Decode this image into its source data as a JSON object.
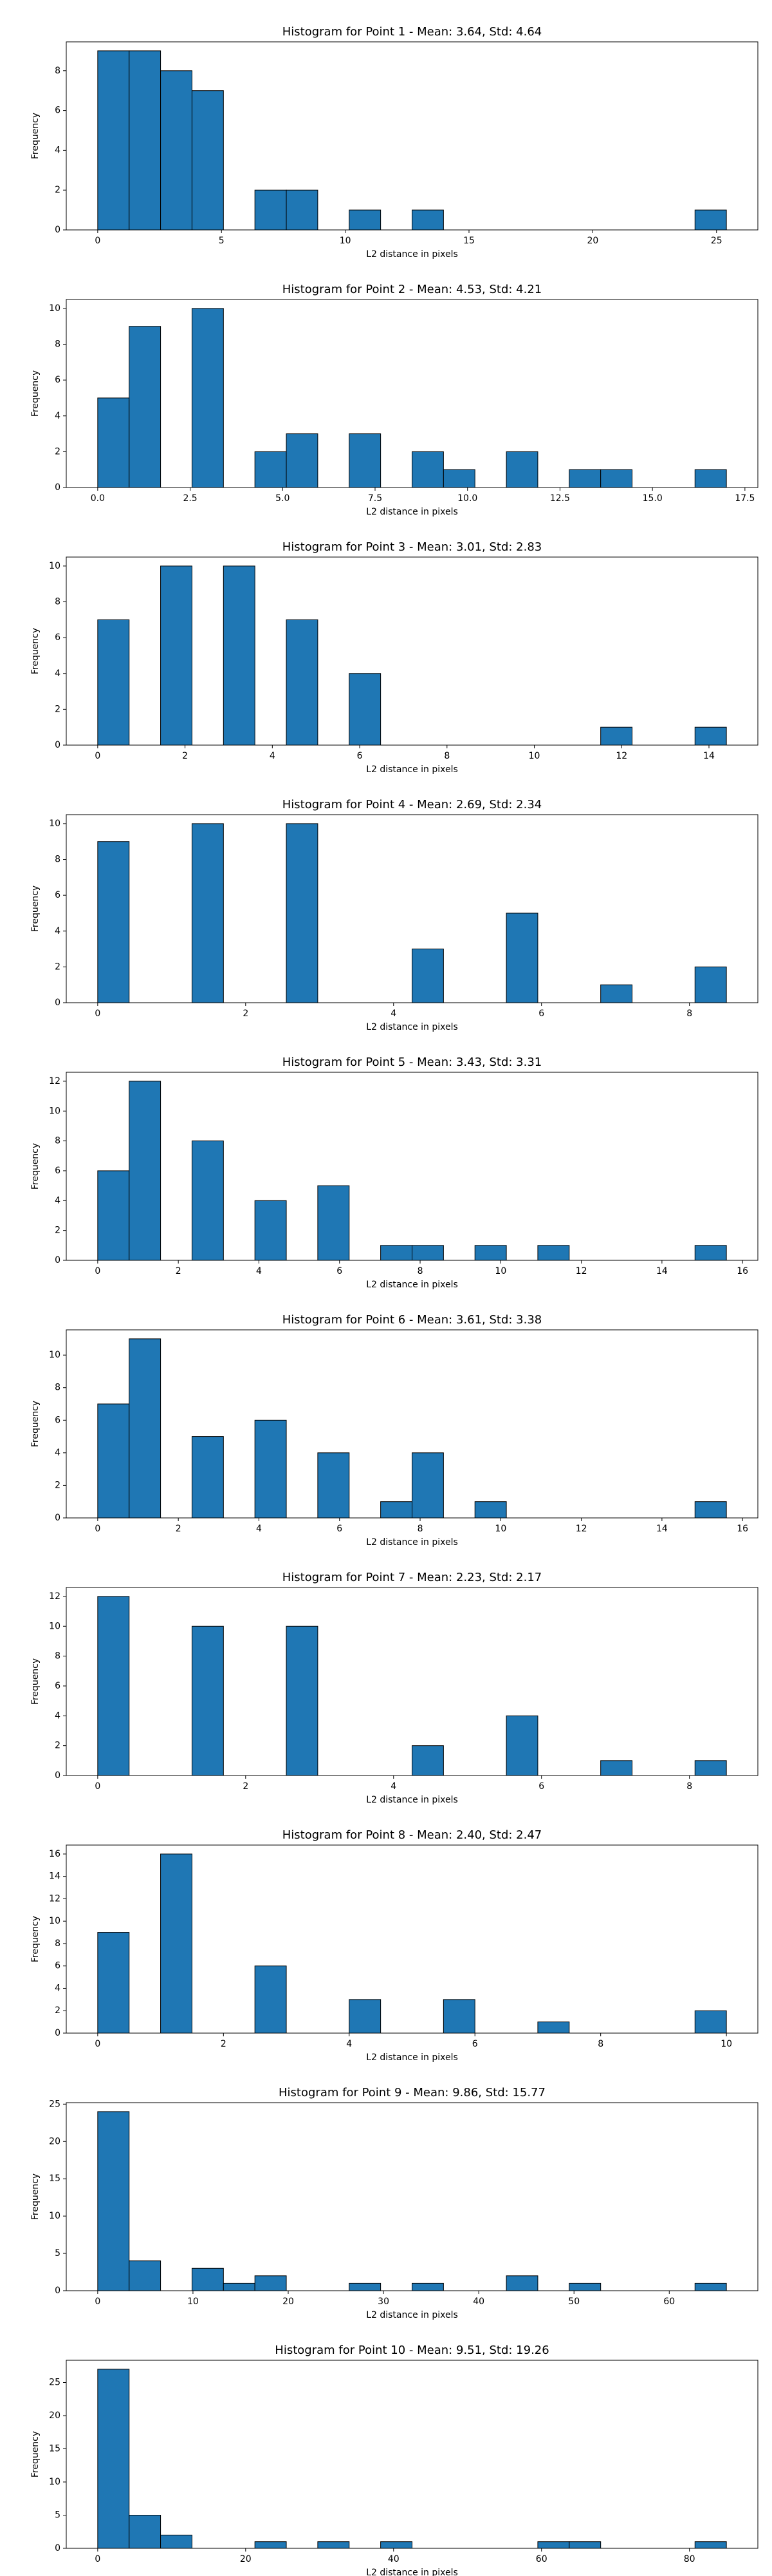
{
  "chart_data": [
    {
      "type": "histogram",
      "title": "Histogram for Point 1 - Mean: 3.64, Std: 4.64",
      "x_label": "L2 distance in pixels",
      "y_label": "Frequency",
      "color": "#1f77b4",
      "bins": [
        0,
        1.27,
        2.54,
        3.81,
        5.08,
        6.35,
        7.62,
        8.89,
        10.16,
        11.43,
        12.7,
        13.97,
        15.24,
        16.51,
        17.78,
        19.05,
        20.32,
        21.59,
        22.86,
        24.13,
        25.4
      ],
      "values": [
        9,
        9,
        8,
        7,
        0,
        2,
        2,
        0,
        1,
        0,
        1,
        0,
        0,
        0,
        0,
        0,
        0,
        0,
        0,
        1
      ],
      "xlim": [
        -1.27,
        26.67
      ],
      "xticks": [
        0,
        5,
        10,
        15,
        20,
        25
      ],
      "ylim": [
        0,
        9.45
      ],
      "yticks": [
        0,
        2,
        4,
        6,
        8
      ]
    },
    {
      "type": "histogram",
      "title": "Histogram for Point 2 - Mean: 4.53, Std: 4.21",
      "x_label": "L2 distance in pixels",
      "y_label": "Frequency",
      "color": "#1f77b4",
      "bins": [
        0,
        0.85,
        1.7,
        2.55,
        3.4,
        4.25,
        5.1,
        5.95,
        6.8,
        7.65,
        8.5,
        9.35,
        10.2,
        11.05,
        11.9,
        12.75,
        13.6,
        14.45,
        15.3,
        16.15,
        17
      ],
      "values": [
        5,
        9,
        0,
        10,
        0,
        2,
        3,
        0,
        3,
        0,
        2,
        1,
        0,
        2,
        0,
        1,
        1,
        0,
        0,
        1
      ],
      "xlim": [
        -0.85,
        17.85
      ],
      "xticks": [
        {
          "value": 0,
          "label": "0.0"
        },
        2.5,
        {
          "value": 5,
          "label": "5.0"
        },
        7.5,
        {
          "value": 10,
          "label": "10.0"
        },
        12.5,
        {
          "value": 15,
          "label": "15.0"
        },
        17.5
      ],
      "ylim": [
        0,
        10.5
      ],
      "yticks": [
        0,
        2,
        4,
        6,
        8,
        10
      ]
    },
    {
      "type": "histogram",
      "title": "Histogram for Point 3 - Mean: 3.01, Std: 2.83",
      "x_label": "L2 distance in pixels",
      "y_label": "Frequency",
      "color": "#1f77b4",
      "bins": [
        0,
        0.72,
        1.44,
        2.16,
        2.88,
        3.6,
        4.32,
        5.04,
        5.76,
        6.48,
        7.2,
        7.92,
        8.64,
        9.36,
        10.08,
        10.8,
        11.52,
        12.24,
        12.96,
        13.68,
        14.4
      ],
      "values": [
        7,
        0,
        10,
        0,
        10,
        0,
        7,
        0,
        4,
        0,
        0,
        0,
        0,
        0,
        0,
        0,
        1,
        0,
        0,
        1
      ],
      "xlim": [
        -0.72,
        15.12
      ],
      "xticks": [
        0,
        2,
        4,
        6,
        8,
        10,
        12,
        14
      ],
      "ylim": [
        0,
        10.5
      ],
      "yticks": [
        0,
        2,
        4,
        6,
        8,
        10
      ]
    },
    {
      "type": "histogram",
      "title": "Histogram for Point 4 - Mean: 2.69, Std: 2.34",
      "x_label": "L2 distance in pixels",
      "y_label": "Frequency",
      "color": "#1f77b4",
      "bins": [
        0,
        0.425,
        0.85,
        1.275,
        1.7,
        2.125,
        2.55,
        2.975,
        3.4,
        3.825,
        4.25,
        4.675,
        5.1,
        5.525,
        5.95,
        6.375,
        6.8,
        7.225,
        7.65,
        8.075,
        8.5
      ],
      "values": [
        9,
        0,
        0,
        10,
        0,
        0,
        10,
        0,
        0,
        0,
        3,
        0,
        0,
        5,
        0,
        0,
        1,
        0,
        0,
        2
      ],
      "xlim": [
        -0.425,
        8.925
      ],
      "xticks": [
        0,
        2,
        4,
        6,
        8
      ],
      "ylim": [
        0,
        10.5
      ],
      "yticks": [
        0,
        2,
        4,
        6,
        8,
        10
      ]
    },
    {
      "type": "histogram",
      "title": "Histogram for Point 5 - Mean: 3.43, Std: 3.31",
      "x_label": "L2 distance in pixels",
      "y_label": "Frequency",
      "color": "#1f77b4",
      "bins": [
        0,
        0.78,
        1.56,
        2.34,
        3.12,
        3.9,
        4.68,
        5.46,
        6.24,
        7.02,
        7.8,
        8.58,
        9.36,
        10.14,
        10.92,
        11.7,
        12.48,
        13.26,
        14.04,
        14.82,
        15.6
      ],
      "values": [
        6,
        12,
        0,
        8,
        0,
        4,
        0,
        5,
        0,
        1,
        1,
        0,
        1,
        0,
        1,
        0,
        0,
        0,
        0,
        1
      ],
      "xlim": [
        -0.78,
        16.38
      ],
      "xticks": [
        0,
        2,
        4,
        6,
        8,
        10,
        12,
        14,
        16
      ],
      "ylim": [
        0,
        12.6
      ],
      "yticks": [
        0,
        2,
        4,
        6,
        8,
        10,
        12
      ]
    },
    {
      "type": "histogram",
      "title": "Histogram for Point 6 - Mean: 3.61, Std: 3.38",
      "x_label": "L2 distance in pixels",
      "y_label": "Frequency",
      "color": "#1f77b4",
      "bins": [
        0,
        0.78,
        1.56,
        2.34,
        3.12,
        3.9,
        4.68,
        5.46,
        6.24,
        7.02,
        7.8,
        8.58,
        9.36,
        10.14,
        10.92,
        11.7,
        12.48,
        13.26,
        14.04,
        14.82,
        15.6
      ],
      "values": [
        7,
        11,
        0,
        5,
        0,
        6,
        0,
        4,
        0,
        1,
        4,
        0,
        1,
        0,
        0,
        0,
        0,
        0,
        0,
        1
      ],
      "xlim": [
        -0.78,
        16.38
      ],
      "xticks": [
        0,
        2,
        4,
        6,
        8,
        10,
        12,
        14,
        16
      ],
      "ylim": [
        0,
        11.55
      ],
      "yticks": [
        0,
        2,
        4,
        6,
        8,
        10
      ]
    },
    {
      "type": "histogram",
      "title": "Histogram for Point 7 - Mean: 2.23, Std: 2.17",
      "x_label": "L2 distance in pixels",
      "y_label": "Frequency",
      "color": "#1f77b4",
      "bins": [
        0,
        0.425,
        0.85,
        1.275,
        1.7,
        2.125,
        2.55,
        2.975,
        3.4,
        3.825,
        4.25,
        4.675,
        5.1,
        5.525,
        5.95,
        6.375,
        6.8,
        7.225,
        7.65,
        8.075,
        8.5
      ],
      "values": [
        12,
        0,
        0,
        10,
        0,
        0,
        10,
        0,
        0,
        0,
        2,
        0,
        0,
        4,
        0,
        0,
        1,
        0,
        0,
        1
      ],
      "xlim": [
        -0.425,
        8.925
      ],
      "xticks": [
        0,
        2,
        4,
        6,
        8
      ],
      "ylim": [
        0,
        12.6
      ],
      "yticks": [
        0,
        2,
        4,
        6,
        8,
        10,
        12
      ]
    },
    {
      "type": "histogram",
      "title": "Histogram for Point 8 - Mean: 2.40, Std: 2.47",
      "x_label": "L2 distance in pixels",
      "y_label": "Frequency",
      "color": "#1f77b4",
      "bins": [
        0,
        0.5,
        1,
        1.5,
        2,
        2.5,
        3,
        3.5,
        4,
        4.5,
        5,
        5.5,
        6,
        6.5,
        7,
        7.5,
        8,
        8.5,
        9,
        9.5,
        10
      ],
      "values": [
        9,
        0,
        16,
        0,
        0,
        6,
        0,
        0,
        3,
        0,
        0,
        3,
        0,
        0,
        1,
        0,
        0,
        0,
        0,
        2
      ],
      "xlim": [
        -0.5,
        10.5
      ],
      "xticks": [
        0,
        2,
        4,
        6,
        8,
        10
      ],
      "ylim": [
        0,
        16.8
      ],
      "yticks": [
        0,
        2,
        4,
        6,
        8,
        10,
        12,
        14,
        16
      ]
    },
    {
      "type": "histogram",
      "title": "Histogram for Point 9 - Mean: 9.86, Std: 15.77",
      "x_label": "L2 distance in pixels",
      "y_label": "Frequency",
      "color": "#1f77b4",
      "bins": [
        0,
        3.3,
        6.6,
        9.9,
        13.2,
        16.5,
        19.8,
        23.1,
        26.4,
        29.7,
        33,
        36.3,
        39.6,
        42.9,
        46.2,
        49.5,
        52.8,
        56.1,
        59.4,
        62.7,
        66
      ],
      "values": [
        24,
        4,
        0,
        3,
        1,
        2,
        0,
        0,
        1,
        0,
        1,
        0,
        0,
        2,
        0,
        1,
        0,
        0,
        0,
        1
      ],
      "xlim": [
        -3.3,
        69.3
      ],
      "xticks": [
        0,
        10,
        20,
        30,
        40,
        50,
        60
      ],
      "ylim": [
        0,
        25.2
      ],
      "yticks": [
        0,
        5,
        10,
        15,
        20,
        25
      ]
    },
    {
      "type": "histogram",
      "title": "Histogram for Point 10 - Mean: 9.51, Std: 19.26",
      "x_label": "L2 distance in pixels",
      "y_label": "Frequency",
      "color": "#1f77b4",
      "bins": [
        0,
        4.25,
        8.5,
        12.75,
        17,
        21.25,
        25.5,
        29.75,
        34,
        38.25,
        42.5,
        46.75,
        51,
        55.25,
        59.5,
        63.75,
        68,
        72.25,
        76.5,
        80.75,
        85
      ],
      "values": [
        27,
        5,
        2,
        0,
        0,
        1,
        0,
        1,
        0,
        1,
        0,
        0,
        0,
        0,
        1,
        1,
        0,
        0,
        0,
        1
      ],
      "xlim": [
        -4.25,
        89.25
      ],
      "xticks": [
        0,
        20,
        40,
        60,
        80
      ],
      "ylim": [
        0,
        28.35
      ],
      "yticks": [
        0,
        5,
        10,
        15,
        20,
        25
      ]
    }
  ]
}
